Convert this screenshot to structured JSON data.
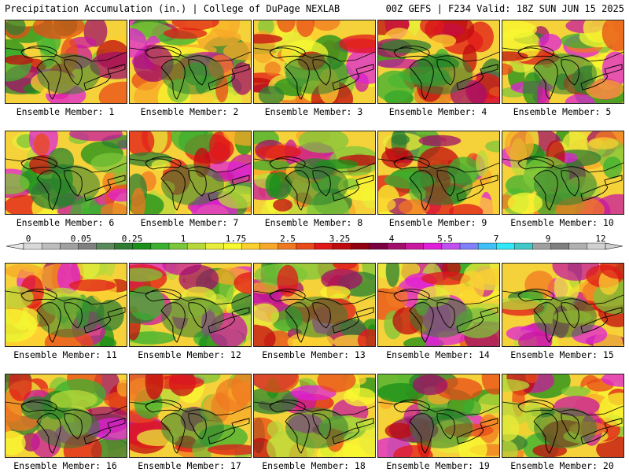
{
  "header": {
    "left": "Precipitation Accumulation (in.) | College of DuPage NEXLAB",
    "right": "00Z GEFS | F234 Valid: 18Z SUN JUN 15 2025"
  },
  "colorbar": {
    "tick_labels": [
      "0",
      "0.05",
      "0.25",
      "1",
      "1.75",
      "2.5",
      "3.25",
      "4",
      "5.5",
      "7",
      "9",
      "12"
    ],
    "colors": [
      "#d9d9d9",
      "#bdbdbd",
      "#a0a0a0",
      "#808080",
      "#5a8a5a",
      "#2e7d32",
      "#1a8f1a",
      "#3cb030",
      "#7cc63a",
      "#b8d83a",
      "#e8ec3a",
      "#f8f830",
      "#fcd030",
      "#f8a828",
      "#f07820",
      "#e84a18",
      "#e01818",
      "#c00a10",
      "#900010",
      "#7a0040",
      "#a0106a",
      "#c818a0",
      "#e020d8",
      "#c050f0",
      "#8080f8",
      "#40c0f8",
      "#30e8f8",
      "#40c8c8",
      "#a0a0a0",
      "#808080",
      "#b0b0b0",
      "#d0d0d0"
    ]
  },
  "members": [
    {
      "label": "Ensemble Member: 1"
    },
    {
      "label": "Ensemble Member: 2"
    },
    {
      "label": "Ensemble Member: 3"
    },
    {
      "label": "Ensemble Member: 4"
    },
    {
      "label": "Ensemble Member: 5"
    },
    {
      "label": "Ensemble Member: 6"
    },
    {
      "label": "Ensemble Member: 7"
    },
    {
      "label": "Ensemble Member: 8"
    },
    {
      "label": "Ensemble Member: 9"
    },
    {
      "label": "Ensemble Member: 10"
    },
    {
      "label": "Ensemble Member: 11"
    },
    {
      "label": "Ensemble Member: 12"
    },
    {
      "label": "Ensemble Member: 13"
    },
    {
      "label": "Ensemble Member: 14"
    },
    {
      "label": "Ensemble Member: 15"
    },
    {
      "label": "Ensemble Member: 16"
    },
    {
      "label": "Ensemble Member: 17"
    },
    {
      "label": "Ensemble Member: 18"
    },
    {
      "label": "Ensemble Member: 19"
    },
    {
      "label": "Ensemble Member: 20"
    }
  ]
}
